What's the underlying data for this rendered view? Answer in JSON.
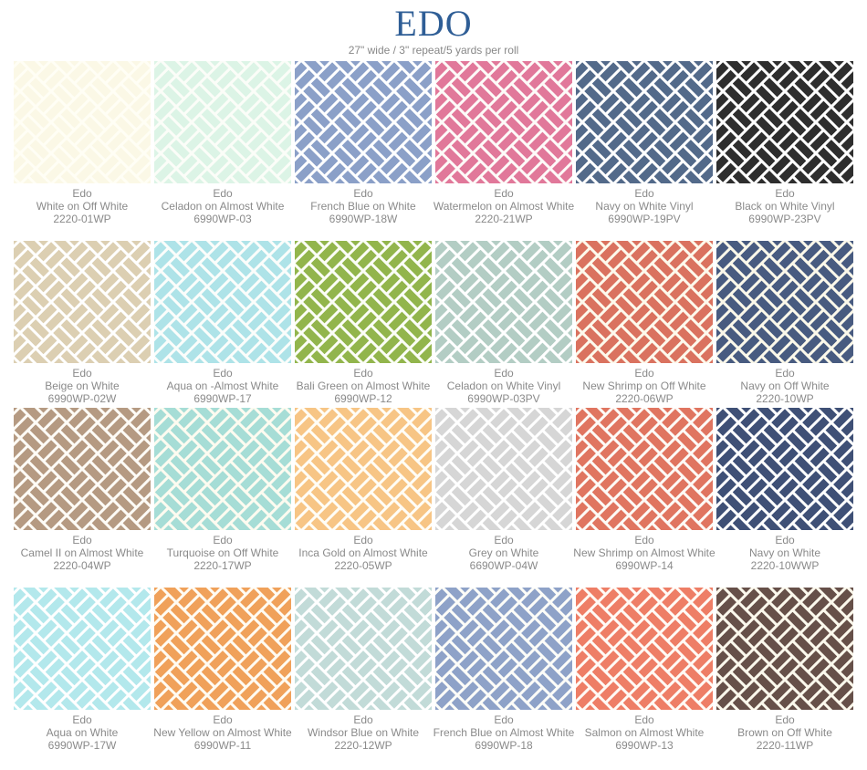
{
  "header": {
    "title": "EDO",
    "subtitle": "27\" wide / 3\" repeat/5 yards per roll"
  },
  "swatches": [
    {
      "pattern": "Edo",
      "colorway": "White on Off White",
      "sku": "2220-01WP",
      "fg": "#fbf8e6",
      "bg": "#fffef5"
    },
    {
      "pattern": "Edo",
      "colorway": "Celadon on Almost White",
      "sku": "6990WP-03",
      "fg": "#dcf4e6",
      "bg": "#fbfdf8"
    },
    {
      "pattern": "Edo",
      "colorway": "French Blue on White",
      "sku": "6990WP-18W",
      "fg": "#8ba0c8",
      "bg": "#ffffff"
    },
    {
      "pattern": "Edo",
      "colorway": "Watermelon on Almost White",
      "sku": "2220-21WP",
      "fg": "#e1789a",
      "bg": "#fdfaf8"
    },
    {
      "pattern": "Edo",
      "colorway": "Navy on White Vinyl",
      "sku": "6990WP-19PV",
      "fg": "#536a8a",
      "bg": "#ffffff"
    },
    {
      "pattern": "Edo",
      "colorway": "Black on White Vinyl",
      "sku": "6990WP-23PV",
      "fg": "#2e2e2e",
      "bg": "#ffffff"
    },
    {
      "pattern": "Edo",
      "colorway": "Beige on White",
      "sku": "6990WP-02W",
      "fg": "#dccfb2",
      "bg": "#ffffff"
    },
    {
      "pattern": "Edo",
      "colorway": "Aqua on -Almost White",
      "sku": "6990WP-17",
      "fg": "#aee3e8",
      "bg": "#fbfdfb"
    },
    {
      "pattern": "Edo",
      "colorway": "Bali Green on Almost White",
      "sku": "6990WP-12",
      "fg": "#92b54c",
      "bg": "#fbfdf6"
    },
    {
      "pattern": "Edo",
      "colorway": "Celadon on White Vinyl",
      "sku": "6990WP-03PV",
      "fg": "#b3cdc4",
      "bg": "#ffffff"
    },
    {
      "pattern": "Edo",
      "colorway": "New Shrimp on Off White",
      "sku": "2220-06WP",
      "fg": "#da725f",
      "bg": "#fdf9ec"
    },
    {
      "pattern": "Edo",
      "colorway": "Navy on Off White",
      "sku": "2220-10WP",
      "fg": "#485b80",
      "bg": "#fbf8ea"
    },
    {
      "pattern": "Edo",
      "colorway": "Camel II on Almost White",
      "sku": "2220-04WP",
      "fg": "#b59a82",
      "bg": "#fdfbf6"
    },
    {
      "pattern": "Edo",
      "colorway": "Turquoise on Off White",
      "sku": "2220-17WP",
      "fg": "#a6ddd6",
      "bg": "#fdfbf0"
    },
    {
      "pattern": "Edo",
      "colorway": "Inca Gold on Almost White",
      "sku": "2220-05WP",
      "fg": "#f7c585",
      "bg": "#fffdf6"
    },
    {
      "pattern": "Edo",
      "colorway": "Grey on White",
      "sku": "6690WP-04W",
      "fg": "#d6d6d6",
      "bg": "#ffffff"
    },
    {
      "pattern": "Edo",
      "colorway": "New Shrimp on Almost White",
      "sku": "6990WP-14",
      "fg": "#e07560",
      "bg": "#fdfaf6"
    },
    {
      "pattern": "Edo",
      "colorway": "Navy on White",
      "sku": "2220-10WWP",
      "fg": "#3f5076",
      "bg": "#ffffff"
    },
    {
      "pattern": "Edo",
      "colorway": "Aqua on White",
      "sku": "6990WP-17W",
      "fg": "#b3e8ec",
      "bg": "#ffffff"
    },
    {
      "pattern": "Edo",
      "colorway": "New Yellow on Almost White",
      "sku": "6990WP-11",
      "fg": "#f0a15a",
      "bg": "#fffbf2"
    },
    {
      "pattern": "Edo",
      "colorway": "Windsor Blue on White",
      "sku": "2220-12WP",
      "fg": "#c2dbd8",
      "bg": "#ffffff"
    },
    {
      "pattern": "Edo",
      "colorway": "French Blue on Almost White",
      "sku": "6990WP-18",
      "fg": "#8ea2c8",
      "bg": "#fcfcf8"
    },
    {
      "pattern": "Edo",
      "colorway": "Salmon on Almost White",
      "sku": "6990WP-13",
      "fg": "#ee7e66",
      "bg": "#fffaf5"
    },
    {
      "pattern": "Edo",
      "colorway": "Brown on Off White",
      "sku": "2220-11WP",
      "fg": "#665049",
      "bg": "#fbf8ec"
    }
  ]
}
